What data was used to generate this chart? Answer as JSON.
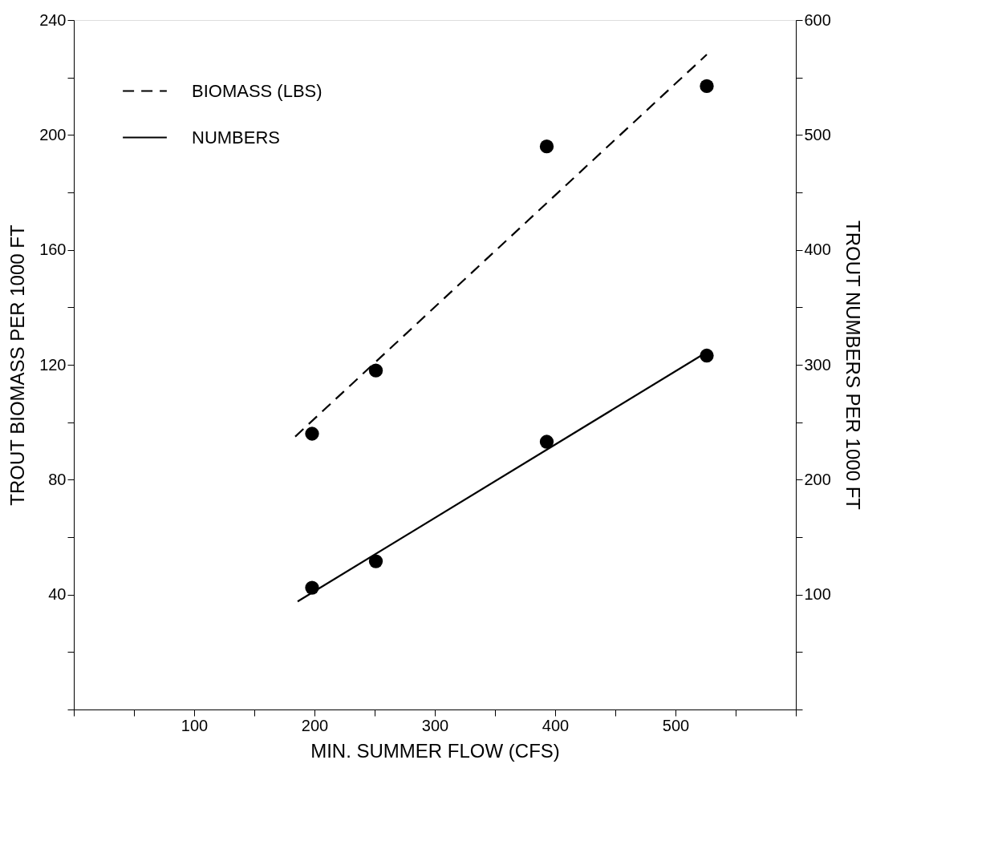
{
  "chart_data": {
    "type": "scatter",
    "xlabel": "MIN. SUMMER FLOW (CFS)",
    "ylabel": "TROUT BIOMASS PER 1000 FT",
    "y2label": "TROUT NUMBERS PER 1000 FT",
    "xlim": [
      0,
      600
    ],
    "ylim": [
      0,
      240
    ],
    "y2lim": [
      0,
      600
    ],
    "xticks": [
      {
        "value": 0,
        "label": null
      },
      {
        "value": 50,
        "label": null
      },
      100,
      {
        "value": 150,
        "label": null
      },
      200,
      {
        "value": 250,
        "label": null
      },
      300,
      {
        "value": 350,
        "label": null
      },
      400,
      {
        "value": 450,
        "label": null
      },
      500,
      {
        "value": 550,
        "label": null
      },
      {
        "value": 600,
        "label": null
      }
    ],
    "yticks": [
      {
        "value": 0,
        "label": null
      },
      {
        "value": 20,
        "label": null
      },
      40,
      {
        "value": 60,
        "label": null
      },
      80,
      {
        "value": 100,
        "label": null
      },
      120,
      {
        "value": 140,
        "label": null
      },
      160,
      {
        "value": 180,
        "label": null
      },
      200,
      {
        "value": 220,
        "label": null
      },
      240
    ],
    "y2ticks": [
      {
        "value": 0,
        "label": null
      },
      {
        "value": 50,
        "label": null
      },
      100,
      {
        "value": 150,
        "label": null
      },
      200,
      {
        "value": 250,
        "label": null
      },
      300,
      {
        "value": 350,
        "label": null
      },
      400,
      {
        "value": 450,
        "label": null
      },
      500,
      {
        "value": 550,
        "label": null
      },
      600
    ],
    "grid": false,
    "legend": "top left",
    "series": [
      {
        "name": "BIOMASS (LBS)",
        "type": "line",
        "line_style": "dashed",
        "color": "#000000",
        "x": [
          184,
          526
        ],
        "values": [
          95,
          228
        ]
      },
      {
        "name": "NUMBERS",
        "type": "line",
        "line_style": "solid",
        "color": "#000000",
        "axis": "y2",
        "x": [
          186,
          526
        ],
        "values": [
          94,
          311
        ]
      },
      {
        "marker": "circle",
        "color": "#000000",
        "x": [
          198,
          251,
          393,
          526
        ],
        "values": [
          96,
          118,
          196,
          217
        ]
      },
      {
        "marker": "circle",
        "color": "#000000",
        "axis": "y2",
        "x": [
          198,
          251,
          393,
          526
        ],
        "values": [
          106,
          129,
          233,
          308
        ]
      }
    ]
  }
}
